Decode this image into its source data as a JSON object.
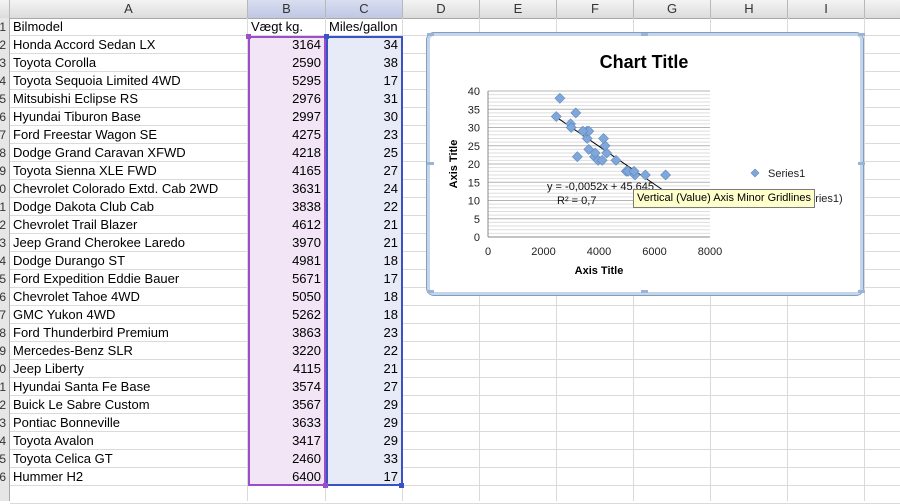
{
  "columns": [
    "A",
    "B",
    "C",
    "D",
    "E",
    "F",
    "G",
    "H",
    "I"
  ],
  "row_numbers": [
    "1",
    "2",
    "3",
    "4",
    "5",
    "6",
    "7",
    "8",
    "9",
    "0",
    "1",
    "2",
    "3",
    "4",
    "5",
    "6",
    "7",
    "8",
    "9",
    "0",
    "1",
    "2",
    "3",
    "4",
    "5",
    "6"
  ],
  "headers": {
    "model": "Bilmodel",
    "weight": "Vægt kg.",
    "mpg": "Miles/gallon"
  },
  "rows": [
    {
      "model": "Honda Accord Sedan LX",
      "weight": "3164",
      "mpg": "34"
    },
    {
      "model": "Toyota Corolla",
      "weight": "2590",
      "mpg": "38"
    },
    {
      "model": "Toyota Sequoia Limited 4WD",
      "weight": "5295",
      "mpg": "17"
    },
    {
      "model": "Mitsubishi Eclipse RS",
      "weight": "2976",
      "mpg": "31"
    },
    {
      "model": "Hyundai Tiburon Base",
      "weight": "2997",
      "mpg": "30"
    },
    {
      "model": "Ford Freestar Wagon SE",
      "weight": "4275",
      "mpg": "23"
    },
    {
      "model": "Dodge Grand Caravan XFWD",
      "weight": "4218",
      "mpg": "25"
    },
    {
      "model": "Toyota Sienna XLE FWD",
      "weight": "4165",
      "mpg": "27"
    },
    {
      "model": "Chevrolet Colorado Extd. Cab 2WD",
      "weight": "3631",
      "mpg": "24"
    },
    {
      "model": "Dodge Dakota Club Cab",
      "weight": "3838",
      "mpg": "22"
    },
    {
      "model": "Chevrolet Trail Blazer",
      "weight": "4612",
      "mpg": "21"
    },
    {
      "model": "Jeep Grand Cherokee Laredo",
      "weight": "3970",
      "mpg": "21"
    },
    {
      "model": "Dodge Durango ST",
      "weight": "4981",
      "mpg": "18"
    },
    {
      "model": "Ford Expedition Eddie Bauer",
      "weight": "5671",
      "mpg": "17"
    },
    {
      "model": "Chevrolet Tahoe 4WD",
      "weight": "5050",
      "mpg": "18"
    },
    {
      "model": "GMC Yukon 4WD",
      "weight": "5262",
      "mpg": "18"
    },
    {
      "model": "Ford Thunderbird Premium",
      "weight": "3863",
      "mpg": "23"
    },
    {
      "model": "Mercedes-Benz SLR",
      "weight": "3220",
      "mpg": "22"
    },
    {
      "model": "Jeep Liberty",
      "weight": "4115",
      "mpg": "21"
    },
    {
      "model": "Hyundai Santa Fe Base",
      "weight": "3574",
      "mpg": "27"
    },
    {
      "model": "Buick Le Sabre Custom",
      "weight": "3567",
      "mpg": "29"
    },
    {
      "model": "Pontiac Bonneville",
      "weight": "3633",
      "mpg": "29"
    },
    {
      "model": "Toyota Avalon",
      "weight": "3417",
      "mpg": "29"
    },
    {
      "model": "Toyota Celica GT",
      "weight": "2460",
      "mpg": "33"
    },
    {
      "model": "Hummer H2",
      "weight": "6400",
      "mpg": "17"
    }
  ],
  "chart_data": {
    "type": "scatter",
    "title": "Chart Title",
    "xlabel": "Axis Title",
    "ylabel": "Axis Title",
    "xlim": [
      0,
      8000
    ],
    "ylim": [
      0,
      40
    ],
    "xticks": [
      "0",
      "2000",
      "4000",
      "6000",
      "8000"
    ],
    "yticks": [
      "0",
      "5",
      "10",
      "15",
      "20",
      "25",
      "30",
      "35",
      "40"
    ],
    "grid": true,
    "legend": "right",
    "series": [
      {
        "name": "Series1",
        "marker_color": "#7fa7d9",
        "x": [
          3164,
          2590,
          5295,
          2976,
          2997,
          4275,
          4218,
          4165,
          3631,
          3838,
          4612,
          3970,
          4981,
          5671,
          5050,
          5262,
          3863,
          3220,
          4115,
          3574,
          3567,
          3633,
          3417,
          2460,
          6400
        ],
        "y": [
          34,
          38,
          17,
          31,
          30,
          23,
          25,
          27,
          24,
          22,
          21,
          21,
          18,
          17,
          18,
          18,
          23,
          22,
          21,
          27,
          29,
          29,
          29,
          33,
          17
        ]
      }
    ],
    "trendline": {
      "name": "Linear (Series1)",
      "legend_visible_text": "near (Series1)",
      "slope": -0.0052,
      "intercept": 45.645,
      "equation": "y = -0,0052x + 45,645",
      "r2_visible": "R² = 0,7"
    }
  },
  "tooltip": "Vertical (Value) Axis Minor Gridlines"
}
